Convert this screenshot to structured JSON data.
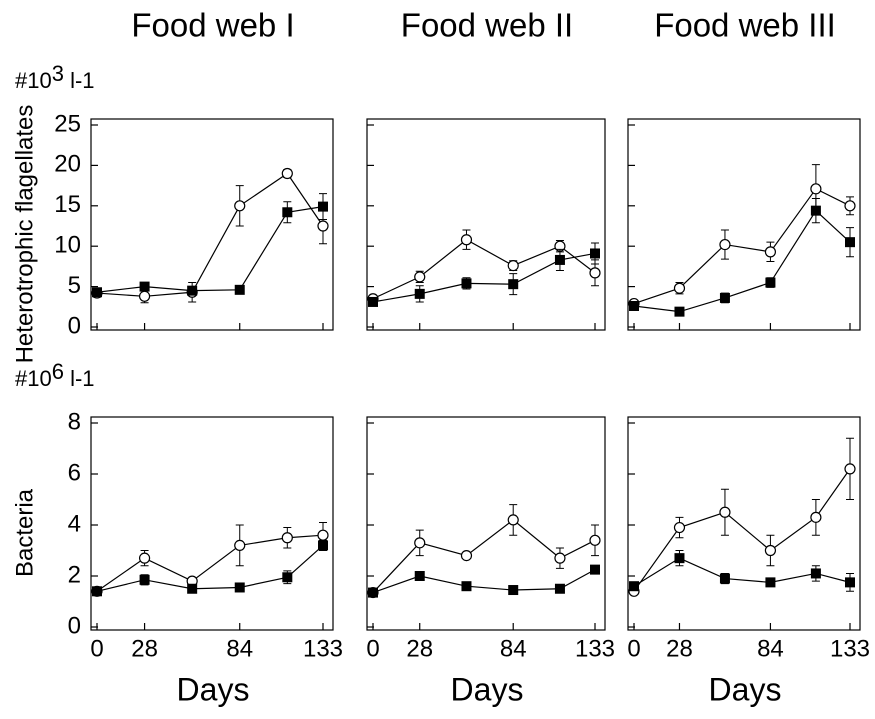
{
  "chart_data": [
    {
      "type": "line",
      "title": "Food web I",
      "ylabel": "Heterotrophic flagellates",
      "y_unit": {
        "base": "#10",
        "exp": "3",
        "rest": " l-1"
      },
      "x": [
        0,
        28,
        56,
        84,
        112,
        133
      ],
      "xlim": [
        0,
        133
      ],
      "xticks": [
        0,
        28,
        84,
        133
      ],
      "xtick_labels": false,
      "ylim": [
        0,
        25
      ],
      "yticks": [
        0,
        5,
        10,
        15,
        20,
        25
      ],
      "ytick_labels": true,
      "series": [
        {
          "color": "#000000",
          "marker": "open-circle",
          "values": [
            4.2,
            3.8,
            4.3,
            15,
            19,
            12.5
          ],
          "errors": [
            0.5,
            0.8,
            1.2,
            2.5,
            0.5,
            2.2
          ]
        },
        {
          "color": "#000000",
          "marker": "filled-square",
          "values": [
            4.3,
            5.0,
            4.5,
            4.6,
            14.2,
            14.9
          ],
          "errors": [
            0.3,
            0.5,
            0.4,
            0.5,
            1.3,
            1.6
          ]
        }
      ]
    },
    {
      "type": "line",
      "title": "Food web II",
      "x": [
        0,
        28,
        56,
        84,
        112,
        133
      ],
      "xlim": [
        0,
        133
      ],
      "xticks": [
        0,
        28,
        84,
        133
      ],
      "xtick_labels": false,
      "ylim": [
        0,
        25
      ],
      "yticks": [
        0,
        5,
        10,
        15,
        20,
        25
      ],
      "ytick_labels": false,
      "series": [
        {
          "color": "#000000",
          "marker": "open-circle",
          "values": [
            3.5,
            6.2,
            10.8,
            7.6,
            10.0,
            6.7
          ],
          "errors": [
            0.3,
            0.7,
            1.2,
            0.6,
            0.7,
            1.6
          ]
        },
        {
          "color": "#000000",
          "marker": "filled-square",
          "values": [
            3.1,
            4.1,
            5.4,
            5.3,
            8.3,
            9.1
          ],
          "errors": [
            0.3,
            1.0,
            0.7,
            1.3,
            1.3,
            1.3
          ]
        }
      ]
    },
    {
      "type": "line",
      "title": "Food web III",
      "x": [
        0,
        28,
        56,
        84,
        112,
        133
      ],
      "xlim": [
        0,
        133
      ],
      "xticks": [
        0,
        28,
        84,
        133
      ],
      "xtick_labels": false,
      "ylim": [
        0,
        25
      ],
      "yticks": [
        0,
        5,
        10,
        15,
        20,
        25
      ],
      "ytick_labels": false,
      "series": [
        {
          "color": "#000000",
          "marker": "open-circle",
          "values": [
            2.9,
            4.8,
            10.2,
            9.3,
            17.1,
            15.0
          ],
          "errors": [
            0.3,
            0.7,
            1.8,
            1.2,
            3.0,
            1.1
          ]
        },
        {
          "color": "#000000",
          "marker": "filled-square",
          "values": [
            2.6,
            1.9,
            3.6,
            5.5,
            14.4,
            10.5
          ],
          "errors": [
            0.3,
            0.3,
            0.6,
            0.6,
            1.5,
            1.8
          ]
        }
      ]
    },
    {
      "type": "line",
      "xlabel": "Days",
      "ylabel": "Bacteria",
      "y_unit": {
        "base": "#10",
        "exp": "6",
        "rest": " l-1"
      },
      "x": [
        0,
        28,
        56,
        84,
        112,
        133
      ],
      "xlim": [
        0,
        133
      ],
      "xticks": [
        0,
        28,
        84,
        133
      ],
      "xtick_labels": true,
      "ylim": [
        0,
        8
      ],
      "yticks": [
        0,
        2,
        4,
        6,
        8
      ],
      "ytick_labels": true,
      "series": [
        {
          "color": "#000000",
          "marker": "open-circle",
          "values": [
            1.4,
            2.7,
            1.8,
            3.2,
            3.5,
            3.6
          ],
          "errors": [
            0.1,
            0.3,
            0.1,
            0.8,
            0.4,
            0.5
          ]
        },
        {
          "color": "#000000",
          "marker": "filled-square",
          "values": [
            1.4,
            1.85,
            1.5,
            1.55,
            1.95,
            3.2
          ],
          "errors": [
            0.1,
            0.2,
            0.1,
            0.1,
            0.25,
            0.2
          ]
        }
      ]
    },
    {
      "type": "line",
      "xlabel": "Days",
      "x": [
        0,
        28,
        56,
        84,
        112,
        133
      ],
      "xlim": [
        0,
        133
      ],
      "xticks": [
        0,
        28,
        84,
        133
      ],
      "xtick_labels": true,
      "ylim": [
        0,
        8
      ],
      "yticks": [
        0,
        2,
        4,
        6,
        8
      ],
      "ytick_labels": false,
      "series": [
        {
          "color": "#000000",
          "marker": "open-circle",
          "values": [
            1.35,
            3.3,
            2.8,
            4.2,
            2.7,
            3.4
          ],
          "errors": [
            0.1,
            0.5,
            0.1,
            0.6,
            0.4,
            0.6
          ]
        },
        {
          "color": "#000000",
          "marker": "filled-square",
          "values": [
            1.35,
            2.0,
            1.6,
            1.45,
            1.5,
            2.25
          ],
          "errors": [
            0.1,
            0.1,
            0.1,
            0.1,
            0.1,
            0.1
          ]
        }
      ]
    },
    {
      "type": "line",
      "xlabel": "Days",
      "x": [
        0,
        28,
        56,
        84,
        112,
        133
      ],
      "xlim": [
        0,
        133
      ],
      "xticks": [
        0,
        28,
        84,
        133
      ],
      "xtick_labels": true,
      "ylim": [
        0,
        8
      ],
      "yticks": [
        0,
        2,
        4,
        6,
        8
      ],
      "ytick_labels": false,
      "series": [
        {
          "color": "#000000",
          "marker": "open-circle",
          "values": [
            1.4,
            3.9,
            4.5,
            3.0,
            4.3,
            6.2
          ],
          "errors": [
            0.1,
            0.4,
            0.9,
            0.6,
            0.7,
            1.2
          ]
        },
        {
          "color": "#000000",
          "marker": "filled-square",
          "values": [
            1.6,
            2.7,
            1.9,
            1.75,
            2.1,
            1.75
          ],
          "errors": [
            0.1,
            0.3,
            0.2,
            0.1,
            0.3,
            0.35
          ]
        }
      ]
    }
  ]
}
